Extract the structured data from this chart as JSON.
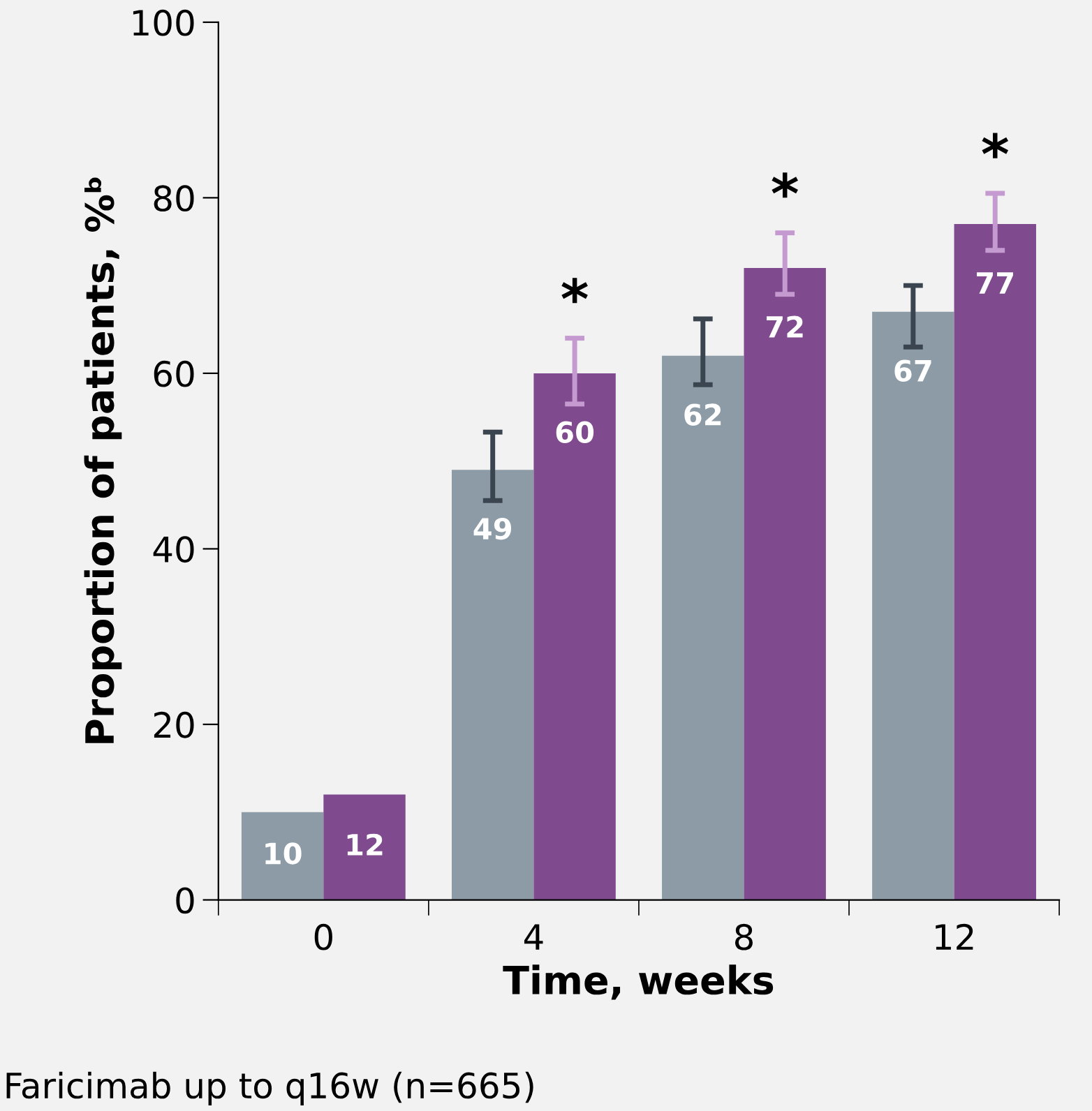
{
  "chart_data": {
    "type": "bar",
    "xlabel": "Time, weeks",
    "ylabel": "Proportion of patients, %ᵇ",
    "categories": [
      "0",
      "4",
      "8",
      "12"
    ],
    "series": [
      {
        "color": "#8c9ba5",
        "values": [
          10,
          49,
          62,
          67
        ],
        "errors": [
          null,
          [
            45.5,
            53.3
          ],
          [
            58.7,
            66.2
          ],
          [
            63,
            70
          ]
        ]
      },
      {
        "color": "#7f4a8e",
        "values": [
          12,
          60,
          72,
          77
        ],
        "errors": [
          null,
          [
            56.5,
            64
          ],
          [
            69,
            76
          ],
          [
            74,
            80.5
          ]
        ]
      }
    ],
    "ylim": [
      0,
      100
    ],
    "yticks": [
      0,
      20,
      40,
      60,
      80,
      100
    ],
    "grid": false,
    "data_labels": true,
    "annotations": [
      "*",
      "*",
      "*",
      "Faricimab up to q16w (n=665)"
    ]
  }
}
